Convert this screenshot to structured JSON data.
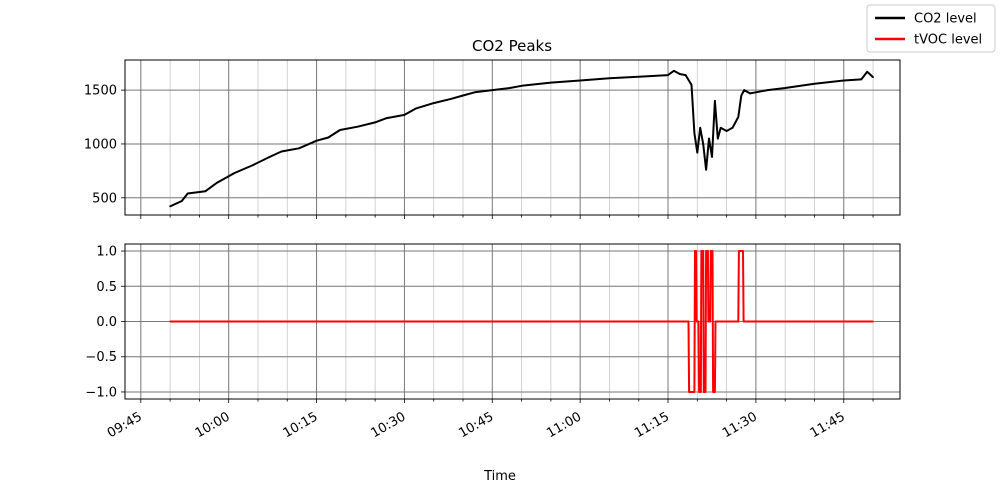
{
  "chart_data": {
    "type": "line",
    "title": "CO2 Peaks",
    "xlabel": "Time",
    "x_ticks": [
      "09:45",
      "10:00",
      "10:15",
      "10:30",
      "10:45",
      "11:00",
      "11:15",
      "11:30",
      "11:45"
    ],
    "grid": true,
    "legend_position": "top-right",
    "panels": [
      {
        "series_name": "CO2 level",
        "color": "#000000",
        "ylim": [
          340,
          1780
        ],
        "y_ticks": [
          "500",
          "1000",
          "1500"
        ],
        "series": [
          {
            "x": "09:50",
            "y": 420
          },
          {
            "x": "09:52",
            "y": 470
          },
          {
            "x": "09:53",
            "y": 540
          },
          {
            "x": "09:56",
            "y": 560
          },
          {
            "x": "09:58",
            "y": 640
          },
          {
            "x": "10:00",
            "y": 700
          },
          {
            "x": "10:01",
            "y": 730
          },
          {
            "x": "10:04",
            "y": 800
          },
          {
            "x": "10:07",
            "y": 880
          },
          {
            "x": "10:09",
            "y": 930
          },
          {
            "x": "10:12",
            "y": 960
          },
          {
            "x": "10:15",
            "y": 1030
          },
          {
            "x": "10:17",
            "y": 1060
          },
          {
            "x": "10:19",
            "y": 1130
          },
          {
            "x": "10:22",
            "y": 1160
          },
          {
            "x": "10:25",
            "y": 1200
          },
          {
            "x": "10:27",
            "y": 1240
          },
          {
            "x": "10:30",
            "y": 1270
          },
          {
            "x": "10:32",
            "y": 1330
          },
          {
            "x": "10:35",
            "y": 1380
          },
          {
            "x": "10:38",
            "y": 1420
          },
          {
            "x": "10:40",
            "y": 1450
          },
          {
            "x": "10:42",
            "y": 1480
          },
          {
            "x": "10:45",
            "y": 1500
          },
          {
            "x": "10:48",
            "y": 1520
          },
          {
            "x": "10:50",
            "y": 1540
          },
          {
            "x": "10:55",
            "y": 1570
          },
          {
            "x": "11:00",
            "y": 1590
          },
          {
            "x": "11:05",
            "y": 1610
          },
          {
            "x": "11:10",
            "y": 1625
          },
          {
            "x": "11:15",
            "y": 1640
          },
          {
            "x": "11:16",
            "y": 1680
          },
          {
            "x": "11:17",
            "y": 1650
          },
          {
            "x": "11:18",
            "y": 1640
          },
          {
            "x": "11:19",
            "y": 1550
          },
          {
            "x": "11:19.5",
            "y": 1100
          },
          {
            "x": "11:20",
            "y": 920
          },
          {
            "x": "11:20.5",
            "y": 1150
          },
          {
            "x": "11:21",
            "y": 1000
          },
          {
            "x": "11:21.5",
            "y": 760
          },
          {
            "x": "11:22",
            "y": 1050
          },
          {
            "x": "11:22.5",
            "y": 880
          },
          {
            "x": "11:23",
            "y": 1400
          },
          {
            "x": "11:23.5",
            "y": 1050
          },
          {
            "x": "11:24",
            "y": 1150
          },
          {
            "x": "11:25",
            "y": 1120
          },
          {
            "x": "11:26",
            "y": 1150
          },
          {
            "x": "11:27",
            "y": 1250
          },
          {
            "x": "11:27.5",
            "y": 1450
          },
          {
            "x": "11:28",
            "y": 1500
          },
          {
            "x": "11:29",
            "y": 1470
          },
          {
            "x": "11:30",
            "y": 1480
          },
          {
            "x": "11:32",
            "y": 1500
          },
          {
            "x": "11:35",
            "y": 1520
          },
          {
            "x": "11:40",
            "y": 1560
          },
          {
            "x": "11:45",
            "y": 1590
          },
          {
            "x": "11:48",
            "y": 1600
          },
          {
            "x": "11:49",
            "y": 1670
          },
          {
            "x": "11:50",
            "y": 1620
          }
        ]
      },
      {
        "series_name": "tVOC level",
        "color": "#ff0000",
        "ylim": [
          -1.1,
          1.1
        ],
        "y_ticks": [
          "1.0",
          "0.5",
          "0.0",
          "−0.5",
          "−1.0"
        ],
        "series": [
          {
            "x": "09:50",
            "y": 0
          },
          {
            "x": "11:18.5",
            "y": 0
          },
          {
            "x": "11:18.6",
            "y": -1
          },
          {
            "x": "11:19.5",
            "y": -1
          },
          {
            "x": "11:19.6",
            "y": 1
          },
          {
            "x": "11:19.8",
            "y": 1
          },
          {
            "x": "11:19.9",
            "y": 0
          },
          {
            "x": "11:20.2",
            "y": 0
          },
          {
            "x": "11:20.3",
            "y": -1
          },
          {
            "x": "11:20.6",
            "y": -1
          },
          {
            "x": "11:20.7",
            "y": 1
          },
          {
            "x": "11:21.0",
            "y": 1
          },
          {
            "x": "11:21.1",
            "y": -1
          },
          {
            "x": "11:21.4",
            "y": -1
          },
          {
            "x": "11:21.5",
            "y": 1
          },
          {
            "x": "11:21.8",
            "y": 1
          },
          {
            "x": "11:21.9",
            "y": 0
          },
          {
            "x": "11:22.2",
            "y": 0
          },
          {
            "x": "11:22.3",
            "y": 1
          },
          {
            "x": "11:22.6",
            "y": 1
          },
          {
            "x": "11:22.7",
            "y": -1
          },
          {
            "x": "11:23.0",
            "y": -1
          },
          {
            "x": "11:23.1",
            "y": 0
          },
          {
            "x": "11:27",
            "y": 0
          },
          {
            "x": "11:27.1",
            "y": 1
          },
          {
            "x": "11:27.8",
            "y": 1
          },
          {
            "x": "11:27.9",
            "y": 0
          },
          {
            "x": "11:50",
            "y": 0
          }
        ]
      }
    ]
  }
}
